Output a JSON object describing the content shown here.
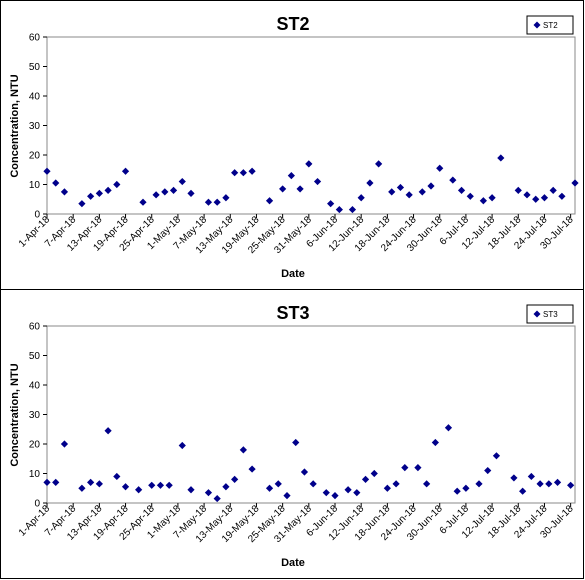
{
  "chart_data": [
    {
      "type": "scatter",
      "title": "ST2",
      "xlabel": "Date",
      "ylabel": "Concentration, NTU",
      "ylim": [
        0,
        60
      ],
      "yticks": [
        0,
        10,
        20,
        30,
        40,
        50,
        60
      ],
      "xlim": [
        "2018-04-01",
        "2018-07-31"
      ],
      "xtick_labels": [
        "1-Apr-18",
        "7-Apr-18",
        "13-Apr-18",
        "19-Apr-18",
        "25-Apr-18",
        "1-May-18",
        "7-May-18",
        "13-May-18",
        "19-May-18",
        "25-May-18",
        "31-May-18",
        "6-Jun-18",
        "12-Jun-18",
        "18-Jun-18",
        "24-Jun-18",
        "30-Jun-18",
        "6-Jul-18",
        "12-Jul-18",
        "18-Jul-18",
        "24-Jul-18",
        "30-Jul-18"
      ],
      "legend_position": "top-right",
      "series": [
        {
          "name": "ST2",
          "color": "#00008b",
          "x": [
            "2018-04-01",
            "2018-04-03",
            "2018-04-05",
            "2018-04-09",
            "2018-04-11",
            "2018-04-13",
            "2018-04-15",
            "2018-04-17",
            "2018-04-19",
            "2018-04-23",
            "2018-04-26",
            "2018-04-28",
            "2018-04-30",
            "2018-05-02",
            "2018-05-04",
            "2018-05-08",
            "2018-05-10",
            "2018-05-12",
            "2018-05-14",
            "2018-05-16",
            "2018-05-18",
            "2018-05-22",
            "2018-05-25",
            "2018-05-27",
            "2018-05-29",
            "2018-05-31",
            "2018-06-02",
            "2018-06-05",
            "2018-06-07",
            "2018-06-10",
            "2018-06-12",
            "2018-06-14",
            "2018-06-16",
            "2018-06-19",
            "2018-06-21",
            "2018-06-23",
            "2018-06-26",
            "2018-06-28",
            "2018-06-30",
            "2018-07-03",
            "2018-07-05",
            "2018-07-07",
            "2018-07-10",
            "2018-07-12",
            "2018-07-14",
            "2018-07-18",
            "2018-07-20",
            "2018-07-22",
            "2018-07-24",
            "2018-07-26",
            "2018-07-28",
            "2018-07-31"
          ],
          "y": [
            14.5,
            10.5,
            7.5,
            3.5,
            6,
            7,
            8,
            10,
            14.5,
            4,
            6.5,
            7.5,
            8,
            11,
            7,
            4,
            4,
            5.5,
            14,
            14,
            14.5,
            4.5,
            8.5,
            13,
            8.5,
            17,
            11,
            3.5,
            1.5,
            1.5,
            5.5,
            10.5,
            17,
            7.5,
            9,
            6.5,
            7.5,
            9.5,
            15.5,
            11.5,
            8,
            6,
            4.5,
            5.5,
            19,
            8,
            6.5,
            5,
            5.5,
            8,
            6,
            10.5
          ]
        }
      ]
    },
    {
      "type": "scatter",
      "title": "ST3",
      "xlabel": "Date",
      "ylabel": "Concentration, NTU",
      "ylim": [
        0,
        60
      ],
      "yticks": [
        0,
        10,
        20,
        30,
        40,
        50,
        60
      ],
      "xlim": [
        "2018-04-01",
        "2018-07-31"
      ],
      "xtick_labels": [
        "1-Apr-18",
        "7-Apr-18",
        "13-Apr-18",
        "19-Apr-18",
        "25-Apr-18",
        "1-May-18",
        "7-May-18",
        "13-May-18",
        "19-May-18",
        "25-May-18",
        "31-May-18",
        "6-Jun-18",
        "12-Jun-18",
        "18-Jun-18",
        "24-Jun-18",
        "30-Jun-18",
        "6-Jul-18",
        "12-Jul-18",
        "18-Jul-18",
        "24-Jul-18",
        "30-Jul-18"
      ],
      "legend_position": "top-right",
      "series": [
        {
          "name": "ST3",
          "color": "#00008b",
          "x": [
            "2018-04-01",
            "2018-04-03",
            "2018-04-05",
            "2018-04-09",
            "2018-04-11",
            "2018-04-13",
            "2018-04-15",
            "2018-04-17",
            "2018-04-19",
            "2018-04-22",
            "2018-04-25",
            "2018-04-27",
            "2018-04-29",
            "2018-05-02",
            "2018-05-04",
            "2018-05-08",
            "2018-05-10",
            "2018-05-12",
            "2018-05-14",
            "2018-05-16",
            "2018-05-18",
            "2018-05-22",
            "2018-05-24",
            "2018-05-26",
            "2018-05-28",
            "2018-05-30",
            "2018-06-01",
            "2018-06-04",
            "2018-06-06",
            "2018-06-09",
            "2018-06-11",
            "2018-06-13",
            "2018-06-15",
            "2018-06-18",
            "2018-06-20",
            "2018-06-22",
            "2018-06-25",
            "2018-06-27",
            "2018-06-29",
            "2018-07-02",
            "2018-07-04",
            "2018-07-06",
            "2018-07-09",
            "2018-07-11",
            "2018-07-13",
            "2018-07-17",
            "2018-07-19",
            "2018-07-21",
            "2018-07-23",
            "2018-07-25",
            "2018-07-27",
            "2018-07-30"
          ],
          "y": [
            7,
            7,
            20,
            5,
            7,
            6.5,
            24.5,
            9,
            5.5,
            4.5,
            6,
            6,
            6,
            19.5,
            4.5,
            3.5,
            1.5,
            5.5,
            8,
            18,
            11.5,
            5,
            6.5,
            2.5,
            20.5,
            10.5,
            6.5,
            3.5,
            2.5,
            4.5,
            3.5,
            8,
            10,
            5,
            6.5,
            12,
            12,
            6.5,
            20.5,
            25.5,
            4,
            5,
            6.5,
            11,
            16,
            8.5,
            4,
            9,
            6.5,
            6.5,
            7,
            6
          ]
        }
      ]
    }
  ]
}
